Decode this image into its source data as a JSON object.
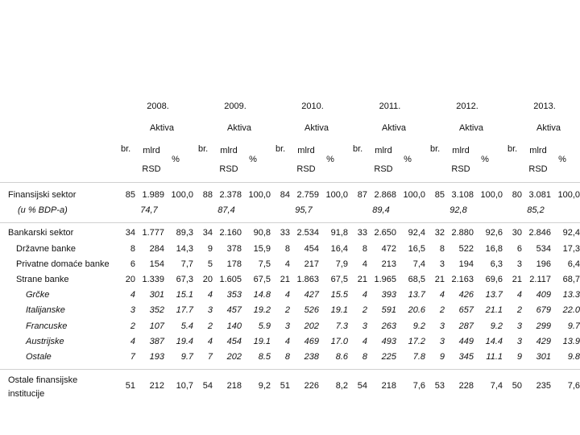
{
  "header": {
    "years": [
      "2008.",
      "2009.",
      "2010.",
      "2011.",
      "2012.",
      "2013."
    ],
    "aktiva": "Aktiva",
    "columns": {
      "br": "br.",
      "mlrd": "mlrd",
      "rsd": "RSD",
      "pct": "%"
    }
  },
  "rows": [
    {
      "label": "Finansijski sektor",
      "cells": [
        [
          "85",
          "1.989",
          "100,0"
        ],
        [
          "88",
          "2.378",
          "100,0"
        ],
        [
          "84",
          "2.759",
          "100,0"
        ],
        [
          "87",
          "2.868",
          "100,0"
        ],
        [
          "85",
          "3.108",
          "100,0"
        ],
        [
          "80",
          "3.081",
          "100,0"
        ]
      ]
    },
    {
      "label": "(u % BDP-a)",
      "cells": [
        "74,7",
        "87,4",
        "95,7",
        "89,4",
        "92,8",
        "85,2"
      ]
    },
    {
      "label": "Bankarski sektor",
      "cells": [
        [
          "34",
          "1.777",
          "89,3"
        ],
        [
          "34",
          "2.160",
          "90,8"
        ],
        [
          "33",
          "2.534",
          "91,8"
        ],
        [
          "33",
          "2.650",
          "92,4"
        ],
        [
          "32",
          "2.880",
          "92,6"
        ],
        [
          "30",
          "2.846",
          "92,4"
        ]
      ]
    },
    {
      "label": "Državne banke",
      "cells": [
        [
          "8",
          "284",
          "14,3"
        ],
        [
          "9",
          "378",
          "15,9"
        ],
        [
          "8",
          "454",
          "16,4"
        ],
        [
          "8",
          "472",
          "16,5"
        ],
        [
          "8",
          "522",
          "16,8"
        ],
        [
          "6",
          "534",
          "17,3"
        ]
      ]
    },
    {
      "label": "Privatne domaće banke",
      "cells": [
        [
          "6",
          "154",
          "7,7"
        ],
        [
          "5",
          "178",
          "7,5"
        ],
        [
          "4",
          "217",
          "7,9"
        ],
        [
          "4",
          "213",
          "7,4"
        ],
        [
          "3",
          "194",
          "6,3"
        ],
        [
          "3",
          "196",
          "6,4"
        ]
      ]
    },
    {
      "label": "Strane banke",
      "cells": [
        [
          "20",
          "1.339",
          "67,3"
        ],
        [
          "20",
          "1.605",
          "67,5"
        ],
        [
          "21",
          "1.863",
          "67,5"
        ],
        [
          "21",
          "1.965",
          "68,5"
        ],
        [
          "21",
          "2.163",
          "69,6"
        ],
        [
          "21",
          "2.117",
          "68,7"
        ]
      ]
    },
    {
      "label": "Grčke",
      "cells": [
        [
          "4",
          "301",
          "15.1"
        ],
        [
          "4",
          "353",
          "14.8"
        ],
        [
          "4",
          "427",
          "15.5"
        ],
        [
          "4",
          "393",
          "13.7"
        ],
        [
          "4",
          "426",
          "13.7"
        ],
        [
          "4",
          "409",
          "13.3"
        ]
      ]
    },
    {
      "label": "Italijanske",
      "cells": [
        [
          "3",
          "352",
          "17.7"
        ],
        [
          "3",
          "457",
          "19.2"
        ],
        [
          "2",
          "526",
          "19.1"
        ],
        [
          "2",
          "591",
          "20.6"
        ],
        [
          "2",
          "657",
          "21.1"
        ],
        [
          "2",
          "679",
          "22.0"
        ]
      ]
    },
    {
      "label": "Francuske",
      "cells": [
        [
          "2",
          "107",
          "5.4"
        ],
        [
          "2",
          "140",
          "5.9"
        ],
        [
          "3",
          "202",
          "7.3"
        ],
        [
          "3",
          "263",
          "9.2"
        ],
        [
          "3",
          "287",
          "9.2"
        ],
        [
          "3",
          "299",
          "9.7"
        ]
      ]
    },
    {
      "label": "Austrijske",
      "cells": [
        [
          "4",
          "387",
          "19.4"
        ],
        [
          "4",
          "454",
          "19.1"
        ],
        [
          "4",
          "469",
          "17.0"
        ],
        [
          "4",
          "493",
          "17.2"
        ],
        [
          "3",
          "449",
          "14.4"
        ],
        [
          "3",
          "429",
          "13.9"
        ]
      ]
    },
    {
      "label": "Ostale",
      "cells": [
        [
          "7",
          "193",
          "9.7"
        ],
        [
          "7",
          "202",
          "8.5"
        ],
        [
          "8",
          "238",
          "8.6"
        ],
        [
          "8",
          "225",
          "7.8"
        ],
        [
          "9",
          "345",
          "11.1"
        ],
        [
          "9",
          "301",
          "9.8"
        ]
      ]
    },
    {
      "label": "Ostale finansijske institucije",
      "cells": [
        [
          "51",
          "212",
          "10,7"
        ],
        [
          "54",
          "218",
          "9,2"
        ],
        [
          "51",
          "226",
          "8,2"
        ],
        [
          "54",
          "218",
          "7,6"
        ],
        [
          "53",
          "228",
          "7,4"
        ],
        [
          "50",
          "235",
          "7,6"
        ]
      ]
    }
  ]
}
